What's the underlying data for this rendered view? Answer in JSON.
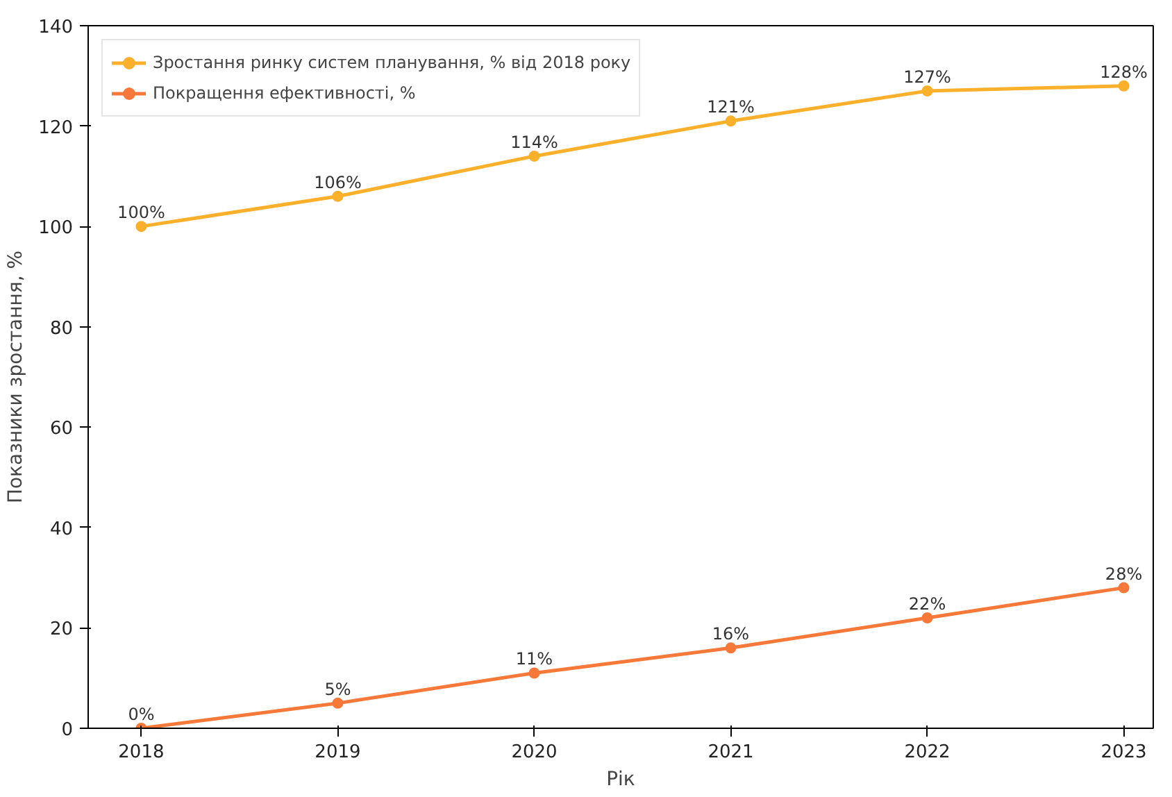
{
  "chart_data": {
    "type": "line",
    "xlabel": "Рік",
    "ylabel": "Показники зростання, %",
    "x": [
      2018,
      2019,
      2020,
      2021,
      2022,
      2023
    ],
    "xlim": [
      2017.73,
      2023.15
    ],
    "xticks": [
      2018,
      2019,
      2020,
      2021,
      2022,
      2023
    ],
    "ylim": [
      0,
      140
    ],
    "yticks": [
      0,
      20,
      40,
      60,
      80,
      100,
      120,
      140
    ],
    "grid": false,
    "legend": "top left",
    "marker": "circle",
    "line_style": "solid",
    "series": [
      {
        "name": "Зростання ринку систем планування, % від 2018 року",
        "color": "#fbb02b",
        "values": [
          100,
          106,
          114,
          121,
          127,
          128
        ],
        "value_labels": [
          "100%",
          "106%",
          "114%",
          "121%",
          "127%",
          "128%"
        ]
      },
      {
        "name": "Покращення ефективності, %",
        "color": "#f7793a",
        "values": [
          0,
          5,
          11,
          16,
          22,
          28
        ],
        "value_labels": [
          "0%",
          "5%",
          "11%",
          "16%",
          "22%",
          "28%"
        ]
      }
    ]
  }
}
